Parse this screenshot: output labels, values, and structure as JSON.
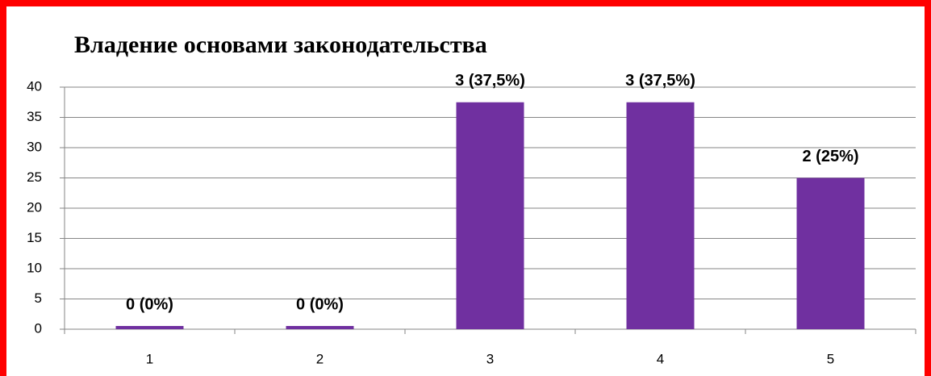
{
  "chart_data": {
    "type": "bar",
    "title": "Владение основами законодательства",
    "categories": [
      "1",
      "2",
      "3",
      "4",
      "5"
    ],
    "values": [
      0,
      0,
      37.5,
      37.5,
      25
    ],
    "value_labels": [
      "0 (0%)",
      "0 (0%)",
      "3 (37,5%)",
      "3 (37,5%)",
      "2 (25%)"
    ],
    "color": "#7030a0",
    "ylim": [
      0,
      40
    ],
    "yticks": [
      0,
      5,
      10,
      15,
      20,
      25,
      30,
      35,
      40
    ],
    "grid": true
  }
}
